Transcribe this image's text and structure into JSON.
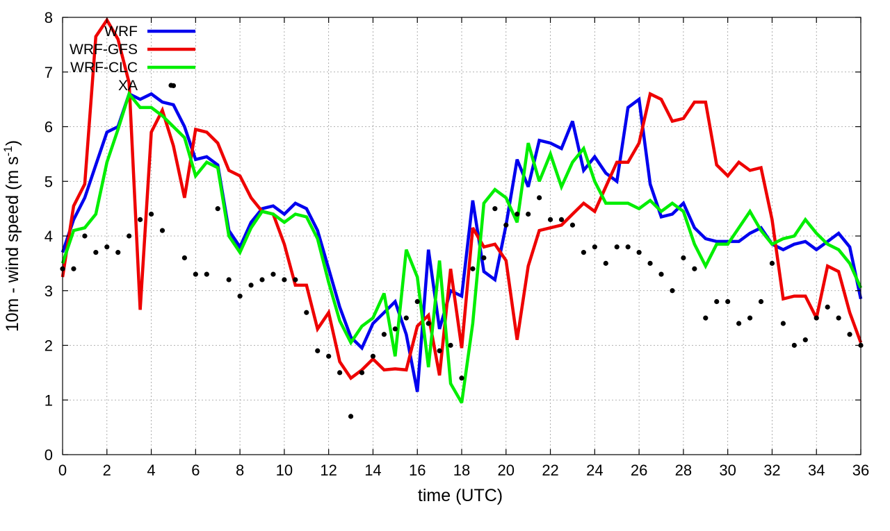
{
  "chart_data": {
    "type": "line",
    "xlabel": "time (UTC)",
    "ylabel": "10m - wind speed  (m s",
    "ylabel_sup": "-1",
    "ylabel_tail": ")",
    "xlim": [
      0,
      36
    ],
    "ylim": [
      0,
      8
    ],
    "xticks": [
      0,
      2,
      4,
      6,
      8,
      10,
      12,
      14,
      16,
      18,
      20,
      22,
      24,
      26,
      28,
      30,
      32,
      34,
      36
    ],
    "yticks": [
      0,
      1,
      2,
      3,
      4,
      5,
      6,
      7,
      8
    ],
    "grid": true,
    "legend_position": "top-left",
    "series": [
      {
        "name": "WRF",
        "color": "#0000ee",
        "style": "line",
        "x": [
          0,
          0.5,
          1,
          1.5,
          2,
          2.5,
          3,
          3.5,
          4,
          4.5,
          5,
          5.5,
          6,
          6.5,
          7,
          7.5,
          8,
          8.5,
          9,
          9.5,
          10,
          10.5,
          11,
          11.5,
          12,
          12.5,
          13,
          13.5,
          14,
          14.5,
          15,
          15.5,
          16,
          16.5,
          17,
          17.5,
          18,
          18.5,
          19,
          19.5,
          20,
          20.5,
          21,
          21.5,
          22,
          22.5,
          23,
          23.5,
          24,
          24.5,
          25,
          25.5,
          26,
          26.5,
          27,
          27.5,
          28,
          28.5,
          29,
          29.5,
          30,
          30.5,
          31,
          31.5,
          32,
          32.5,
          33,
          33.5,
          34,
          34.5,
          35,
          35.5,
          36
        ],
        "y": [
          3.7,
          4.3,
          4.7,
          5.3,
          5.9,
          6.0,
          6.6,
          6.5,
          6.6,
          6.45,
          6.4,
          6.0,
          5.4,
          5.45,
          5.3,
          4.1,
          3.8,
          4.25,
          4.5,
          4.55,
          4.4,
          4.6,
          4.5,
          4.1,
          3.4,
          2.7,
          2.15,
          1.95,
          2.4,
          2.6,
          2.8,
          2.2,
          1.15,
          3.75,
          2.3,
          3.0,
          2.9,
          4.65,
          3.35,
          3.2,
          4.2,
          5.4,
          4.9,
          5.75,
          5.7,
          5.6,
          6.1,
          5.2,
          5.45,
          5.15,
          5.0,
          6.35,
          6.5,
          4.95,
          4.35,
          4.4,
          4.6,
          4.15,
          3.95,
          3.9,
          3.9,
          3.9,
          4.05,
          4.15,
          3.85,
          3.75,
          3.85,
          3.9,
          3.75,
          3.9,
          4.05,
          3.8,
          2.85
        ]
      },
      {
        "name": "WRF-GFS",
        "color": "#ee0000",
        "style": "line",
        "x": [
          0,
          0.5,
          1,
          1.5,
          2,
          2.5,
          3,
          3.5,
          4,
          4.5,
          5,
          5.5,
          6,
          6.5,
          7,
          7.5,
          8,
          8.5,
          9,
          9.5,
          10,
          10.5,
          11,
          11.5,
          12,
          12.5,
          13,
          13.5,
          14,
          14.5,
          15,
          15.5,
          16,
          16.5,
          17,
          17.5,
          18,
          18.5,
          19,
          19.5,
          20,
          20.5,
          21,
          21.5,
          22,
          22.5,
          23,
          23.5,
          24,
          24.5,
          25,
          25.5,
          26,
          26.5,
          27,
          27.5,
          28,
          28.5,
          29,
          29.5,
          30,
          30.5,
          31,
          31.5,
          32,
          32.5,
          33,
          33.5,
          34,
          34.5,
          35,
          35.5,
          36
        ],
        "y": [
          3.25,
          4.55,
          4.95,
          7.65,
          7.95,
          7.6,
          6.8,
          2.65,
          5.9,
          6.3,
          5.65,
          4.7,
          5.95,
          5.9,
          5.7,
          5.2,
          5.1,
          4.7,
          4.45,
          4.4,
          3.85,
          3.1,
          3.1,
          2.3,
          2.6,
          1.7,
          1.4,
          1.55,
          1.75,
          1.55,
          1.57,
          1.55,
          2.35,
          2.55,
          1.45,
          3.4,
          1.95,
          4.15,
          3.8,
          3.85,
          3.55,
          2.1,
          3.45,
          4.1,
          4.15,
          4.2,
          4.4,
          4.6,
          4.45,
          4.9,
          5.35,
          5.35,
          5.7,
          6.6,
          6.5,
          6.1,
          6.15,
          6.45,
          6.45,
          5.3,
          5.1,
          5.35,
          5.2,
          5.25,
          4.3,
          2.85,
          2.9,
          2.9,
          2.5,
          3.45,
          3.35,
          2.6,
          2.05
        ]
      },
      {
        "name": "WRF-CLC",
        "color": "#00ee00",
        "style": "line",
        "x": [
          0,
          0.5,
          1,
          1.5,
          2,
          2.5,
          3,
          3.5,
          4,
          4.5,
          5,
          5.5,
          6,
          6.5,
          7,
          7.5,
          8,
          8.5,
          9,
          9.5,
          10,
          10.5,
          11,
          11.5,
          12,
          12.5,
          13,
          13.5,
          14,
          14.5,
          15,
          15.5,
          16,
          16.5,
          17,
          17.5,
          18,
          18.5,
          19,
          19.5,
          20,
          20.5,
          21,
          21.5,
          22,
          22.5,
          23,
          23.5,
          24,
          24.5,
          25,
          25.5,
          26,
          26.5,
          27,
          27.5,
          28,
          28.5,
          29,
          29.5,
          30,
          30.5,
          31,
          31.5,
          32,
          32.5,
          33,
          33.5,
          34,
          34.5,
          35,
          35.5,
          36
        ],
        "y": [
          3.5,
          4.1,
          4.15,
          4.4,
          5.35,
          5.95,
          6.6,
          6.35,
          6.35,
          6.2,
          6.0,
          5.8,
          5.1,
          5.35,
          5.25,
          4.0,
          3.7,
          4.15,
          4.45,
          4.4,
          4.25,
          4.4,
          4.35,
          3.95,
          3.15,
          2.45,
          2.05,
          2.35,
          2.5,
          2.95,
          1.8,
          3.75,
          3.25,
          1.6,
          3.55,
          1.3,
          0.95,
          2.4,
          4.6,
          4.85,
          4.7,
          4.25,
          5.7,
          5.0,
          5.5,
          4.9,
          5.35,
          5.6,
          5.0,
          4.6,
          4.6,
          4.6,
          4.5,
          4.65,
          4.45,
          4.6,
          4.45,
          3.85,
          3.45,
          3.85,
          3.85,
          4.15,
          4.45,
          4.1,
          3.85,
          3.95,
          4.0,
          4.3,
          4.05,
          3.85,
          3.75,
          3.5,
          3.05
        ]
      },
      {
        "name": "XA",
        "color": "#000000",
        "style": "points",
        "x": [
          0,
          0.5,
          1,
          1.5,
          2,
          2.5,
          3,
          3.5,
          4,
          4.5,
          5,
          5.5,
          6,
          6.5,
          7,
          7.5,
          8,
          8.5,
          9,
          9.5,
          10,
          10.5,
          11,
          11.5,
          12,
          12.5,
          13,
          13.5,
          14,
          14.5,
          15,
          15.5,
          16,
          16.5,
          17,
          17.5,
          18,
          18.5,
          19,
          19.5,
          20,
          20.5,
          21,
          21.5,
          22,
          22.5,
          23,
          23.5,
          24,
          24.5,
          25,
          25.5,
          26,
          26.5,
          27,
          27.5,
          28,
          28.5,
          29,
          29.5,
          30,
          30.5,
          31,
          31.5,
          32,
          32.5,
          33,
          33.5,
          34,
          34.5,
          35,
          35.5,
          36
        ],
        "y": [
          3.4,
          3.4,
          4.0,
          3.7,
          3.8,
          3.7,
          4.0,
          4.3,
          4.4,
          4.1,
          6.75,
          3.6,
          3.3,
          3.3,
          4.5,
          3.2,
          2.9,
          3.1,
          3.2,
          3.3,
          3.2,
          3.2,
          2.6,
          1.9,
          1.8,
          1.5,
          0.7,
          1.5,
          1.8,
          2.2,
          2.3,
          2.5,
          2.8,
          2.4,
          1.9,
          2.0,
          1.4,
          3.4,
          3.6,
          4.5,
          4.2,
          4.4,
          4.4,
          4.7,
          4.3,
          4.3,
          4.2,
          3.7,
          3.8,
          3.5,
          3.8,
          3.8,
          3.7,
          3.5,
          3.3,
          3.0,
          3.6,
          3.4,
          2.5,
          2.8,
          2.8,
          2.4,
          2.5,
          2.8,
          3.5,
          2.4,
          2.0,
          2.1,
          2.5,
          2.7,
          2.5,
          2.2,
          2.0
        ]
      }
    ]
  }
}
